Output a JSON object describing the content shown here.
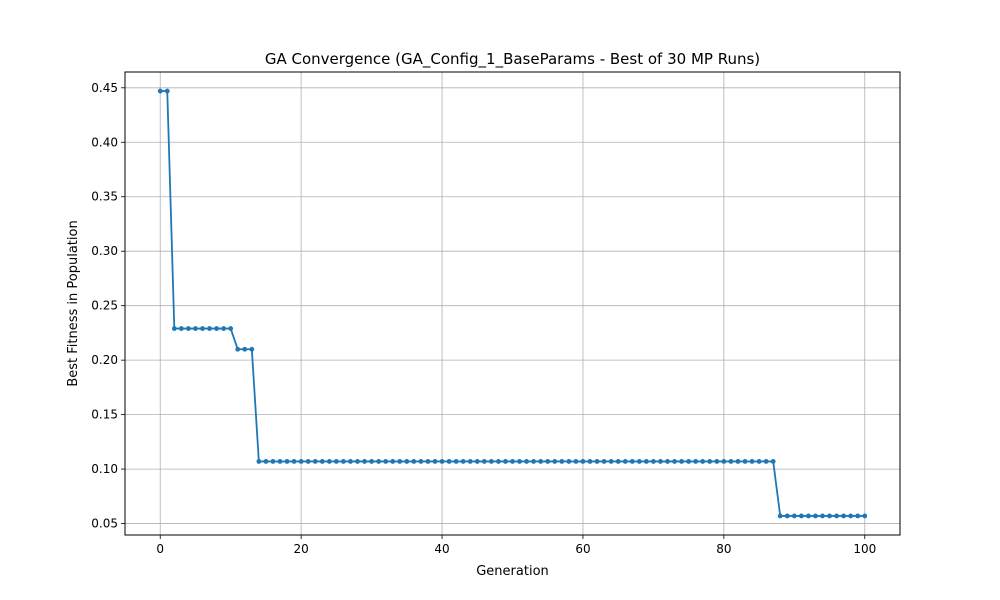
{
  "chart_data": {
    "type": "line",
    "title": "GA Convergence (GA_Config_1_BaseParams - Best of 30 MP Runs)",
    "xlabel": "Generation",
    "ylabel": "Best Fitness in Population",
    "xlim": [
      -5,
      105
    ],
    "ylim": [
      0.0395,
      0.4645
    ],
    "xticks": [
      0,
      20,
      40,
      60,
      80,
      100
    ],
    "yticks": [
      0.05,
      0.1,
      0.15,
      0.2,
      0.25,
      0.3,
      0.35,
      0.4,
      0.45
    ],
    "grid": true,
    "color": "#1f77b4",
    "marker": "circle",
    "segments": [
      {
        "x_start": 0,
        "x_end": 1,
        "y": 0.447
      },
      {
        "x_start": 2,
        "x_end": 10,
        "y": 0.229
      },
      {
        "x_start": 11,
        "x_end": 13,
        "y": 0.21
      },
      {
        "x_start": 14,
        "x_end": 87,
        "y": 0.107
      },
      {
        "x_start": 88,
        "x_end": 100,
        "y": 0.057
      }
    ]
  }
}
